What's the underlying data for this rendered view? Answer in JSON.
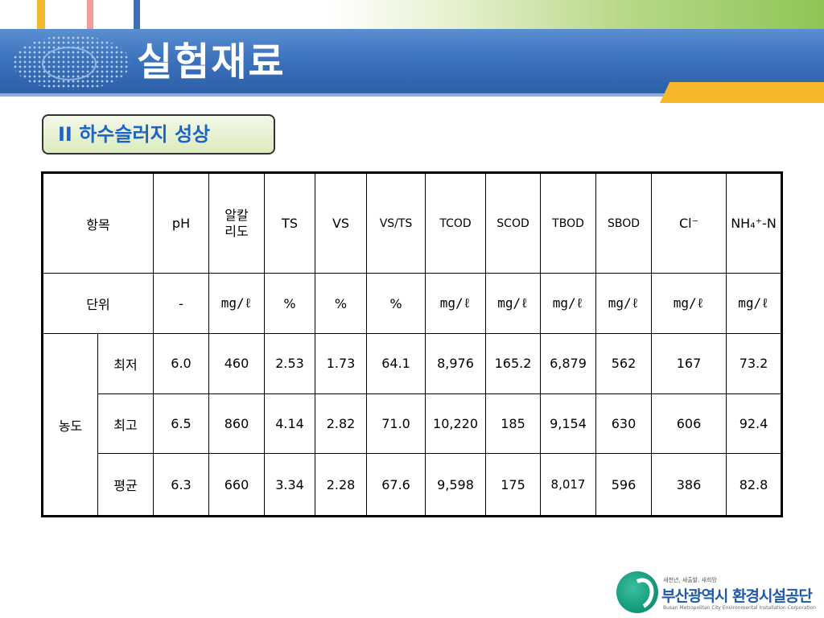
{
  "slide": {
    "title": "실험재료",
    "section_label": "II  하수슬러지 성상"
  },
  "table": {
    "header": {
      "item": "항목",
      "columns": [
        "pH",
        "알칼\n리도",
        "TS",
        "VS",
        "VS/TS",
        "TCOD",
        "SCOD",
        "TBOD",
        "SBOD",
        "Cl⁻",
        "NH₄⁺-N"
      ]
    },
    "unit_row": {
      "label": "단위",
      "values": [
        "-",
        "mg/ℓ",
        "%",
        "%",
        "%",
        "mg/ℓ",
        "mg/ℓ",
        "mg/ℓ",
        "mg/ℓ",
        "mg/ℓ",
        "mg/ℓ"
      ]
    },
    "concentration_label": "농도",
    "rows": [
      {
        "label": "최저",
        "values": [
          "6.0",
          "460",
          "2.53",
          "1.73",
          "64.1",
          "8,976",
          "165.2",
          "6,879",
          "562",
          "167",
          "73.2"
        ]
      },
      {
        "label": "최고",
        "values": [
          "6.5",
          "860",
          "4.14",
          "2.82",
          "71.0",
          "10,220",
          "185",
          "9,154",
          "630",
          "606",
          "92.4"
        ]
      },
      {
        "label": "평균",
        "values": [
          "6.3",
          "660",
          "3.34",
          "2.28",
          "67.6",
          "9,598",
          "175",
          "8,017",
          "596",
          "386",
          "82.8"
        ]
      }
    ]
  },
  "logo": {
    "tagline": "새천년, 새출발, 새희망",
    "name": "부산광역시 환경시설공단",
    "english": "Busan Metropolitan City Environmental Installation Corporation"
  },
  "colors": {
    "title_band": "#3d73bd",
    "section_text": "#1b63c9",
    "highlight_red": "#e8145a",
    "highlight_blue": "#1b63c9",
    "accent_orange": "#f5b82a",
    "accent_green": "#8fc556"
  }
}
